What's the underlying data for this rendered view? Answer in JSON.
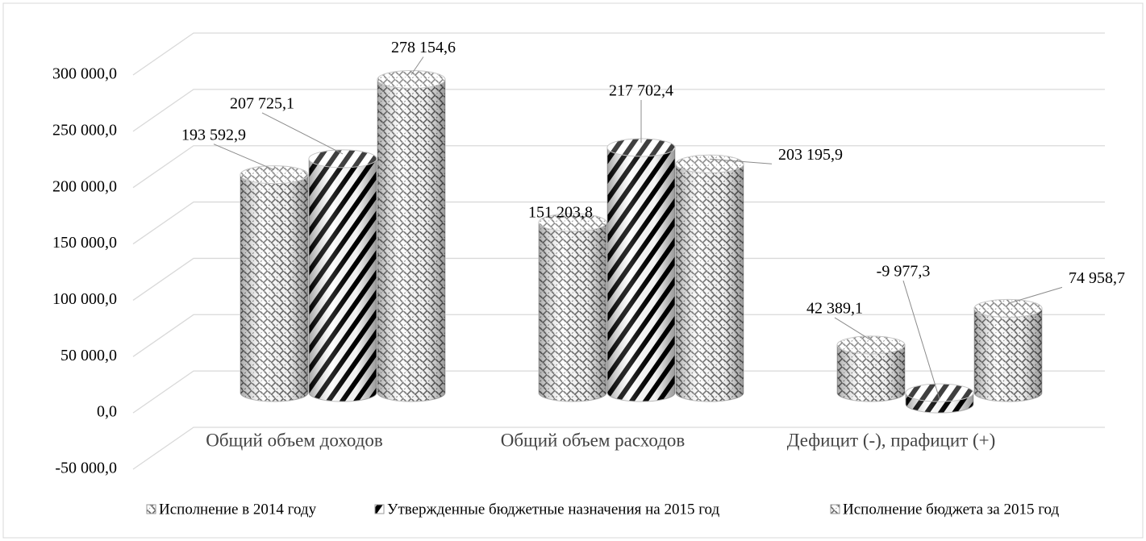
{
  "chart_data": {
    "type": "bar3d-cylinder",
    "categories": [
      "Общий объем доходов",
      "Общий объем расходов",
      "Дефицит (-), прафицит (+)"
    ],
    "series": [
      {
        "name": "Исполнение в 2014 году",
        "color": "#555555",
        "pattern": "weave",
        "values": [
          193592.9,
          151203.8,
          42389.1
        ],
        "value_labels": [
          "193 592,9",
          "151 203,8",
          "42 389,1"
        ]
      },
      {
        "name": "Утвержденные бюджетные назначения на 2015 год",
        "color": "#000000",
        "pattern": "stripes",
        "values": [
          207725.1,
          217702.4,
          -9977.3
        ],
        "value_labels": [
          "207 725,1",
          "217 702,4",
          "-9 977,3"
        ]
      },
      {
        "name": "Исполнение бюджета за 2015 год",
        "color": "#555555",
        "pattern": "weave",
        "values": [
          278154.6,
          203195.9,
          74958.7
        ],
        "value_labels": [
          "278 154,6",
          "203 195,9",
          "74 958,7"
        ]
      }
    ],
    "ylim": [
      -50000,
      300000
    ],
    "yticks": [
      {
        "value": -50000,
        "label": "-50 000,0"
      },
      {
        "value": 0,
        "label": "0,0"
      },
      {
        "value": 50000,
        "label": "50 000,0"
      },
      {
        "value": 100000,
        "label": "100 000,0"
      },
      {
        "value": 150000,
        "label": "150 000,0"
      },
      {
        "value": 200000,
        "label": "200 000,0"
      },
      {
        "value": 250000,
        "label": "250 000,0"
      },
      {
        "value": 300000,
        "label": "300 000,0"
      }
    ],
    "grid": true,
    "legend": "bottom"
  }
}
